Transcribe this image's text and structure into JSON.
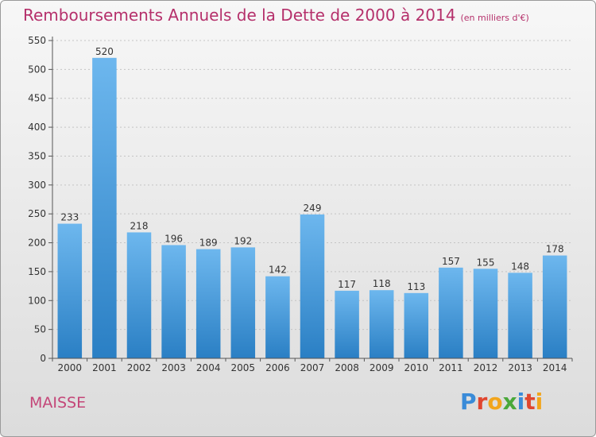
{
  "chart_data": {
    "type": "bar",
    "title": "Remboursements Annuels de la Dette de 2000 à 2014",
    "subtitle": "(en milliers d'€)",
    "categories": [
      "2000",
      "2001",
      "2002",
      "2003",
      "2004",
      "2005",
      "2006",
      "2007",
      "2008",
      "2009",
      "2010",
      "2011",
      "2012",
      "2013",
      "2014"
    ],
    "values": [
      233,
      520,
      218,
      196,
      189,
      192,
      142,
      249,
      117,
      118,
      113,
      157,
      155,
      148,
      178
    ],
    "ylim": [
      0,
      550
    ],
    "yticks": [
      0,
      50,
      100,
      150,
      200,
      250,
      300,
      350,
      400,
      450,
      500,
      550
    ],
    "grid": true,
    "bar_color_top": "#6db7ee",
    "bar_color_bottom": "#2a7fc4",
    "data_labels": true
  },
  "commune": "MAISSE",
  "logo": {
    "text": "Proxiti",
    "letter_colors": [
      "#3a8bd8",
      "#e0462f",
      "#f2a51c",
      "#4aa83a",
      "#3a8bd8",
      "#e0462f",
      "#f2a51c"
    ]
  }
}
